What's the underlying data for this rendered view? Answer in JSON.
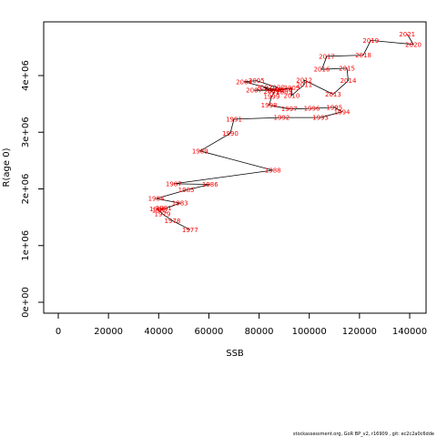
{
  "footer_text": "stockassessment.org, GoR BP_v2, r16909 , git: ec2c2a0c6dde",
  "colors": {
    "line": "#000000",
    "labels": "#ff0000",
    "axis": "#000000"
  },
  "chart_data": {
    "type": "line",
    "title": "",
    "xlabel": "SSB",
    "ylabel": "R(age 0)",
    "xlim": [
      -5000,
      145000
    ],
    "ylim": [
      -100000,
      4800000
    ],
    "x_ticks": [
      0,
      20000,
      40000,
      60000,
      80000,
      100000,
      120000,
      140000
    ],
    "x_tick_labels": [
      "0",
      "20000",
      "40000",
      "60000",
      "80000",
      "100000",
      "120000",
      "140000"
    ],
    "y_ticks": [
      0,
      1000000,
      2000000,
      3000000,
      4000000
    ],
    "y_tick_labels": [
      "0e+00",
      "1e+06",
      "2e+06",
      "3e+06",
      "4e+06"
    ],
    "grid": false,
    "legend": "none",
    "point_labels": "year",
    "points": [
      {
        "year": "1977",
        "x": 52500,
        "y": 1280000
      },
      {
        "year": "1978",
        "x": 45500,
        "y": 1440000
      },
      {
        "year": "1979",
        "x": 41500,
        "y": 1560000
      },
      {
        "year": "1980",
        "x": 39500,
        "y": 1650000
      },
      {
        "year": "1981",
        "x": 42000,
        "y": 1660000
      },
      {
        "year": "1982",
        "x": 40500,
        "y": 1620000
      },
      {
        "year": "1983",
        "x": 48500,
        "y": 1750000
      },
      {
        "year": "1984",
        "x": 39000,
        "y": 1830000
      },
      {
        "year": "1985",
        "x": 51000,
        "y": 1980000
      },
      {
        "year": "1986",
        "x": 60500,
        "y": 2080000
      },
      {
        "year": "1987",
        "x": 46000,
        "y": 2090000
      },
      {
        "year": "1988",
        "x": 85500,
        "y": 2330000
      },
      {
        "year": "1989",
        "x": 56500,
        "y": 2670000
      },
      {
        "year": "1990",
        "x": 68500,
        "y": 2980000
      },
      {
        "year": "1991",
        "x": 70000,
        "y": 3230000
      },
      {
        "year": "1992",
        "x": 89000,
        "y": 3260000
      },
      {
        "year": "1993",
        "x": 104500,
        "y": 3260000
      },
      {
        "year": "1994",
        "x": 113000,
        "y": 3360000
      },
      {
        "year": "1995",
        "x": 110000,
        "y": 3440000
      },
      {
        "year": "1996",
        "x": 101000,
        "y": 3420000
      },
      {
        "year": "1997",
        "x": 92000,
        "y": 3410000
      },
      {
        "year": "1998",
        "x": 84000,
        "y": 3480000
      },
      {
        "year": "1999",
        "x": 85000,
        "y": 3630000
      },
      {
        "year": "2000",
        "x": 87000,
        "y": 3790000
      },
      {
        "year": "2001",
        "x": 85000,
        "y": 3720000
      },
      {
        "year": "2002",
        "x": 82000,
        "y": 3790000
      },
      {
        "year": "2003",
        "x": 90000,
        "y": 3710000
      },
      {
        "year": "2004",
        "x": 74000,
        "y": 3890000
      },
      {
        "year": "2005",
        "x": 79000,
        "y": 3910000
      },
      {
        "year": "2006",
        "x": 90000,
        "y": 3750000
      },
      {
        "year": "2007",
        "x": 78000,
        "y": 3740000
      },
      {
        "year": "2008",
        "x": 86500,
        "y": 3740000
      },
      {
        "year": "2009",
        "x": 93000,
        "y": 3780000
      },
      {
        "year": "2010",
        "x": 93000,
        "y": 3650000
      },
      {
        "year": "2011",
        "x": 98000,
        "y": 3840000
      },
      {
        "year": "2012",
        "x": 98000,
        "y": 3920000
      },
      {
        "year": "2013",
        "x": 109500,
        "y": 3670000
      },
      {
        "year": "2014",
        "x": 115500,
        "y": 3910000
      },
      {
        "year": "2015",
        "x": 115000,
        "y": 4130000
      },
      {
        "year": "2016",
        "x": 105000,
        "y": 4110000
      },
      {
        "year": "2017",
        "x": 107000,
        "y": 4340000
      },
      {
        "year": "2018",
        "x": 121500,
        "y": 4360000
      },
      {
        "year": "2019",
        "x": 124500,
        "y": 4620000
      },
      {
        "year": "2020",
        "x": 141500,
        "y": 4550000
      },
      {
        "year": "2021",
        "x": 139000,
        "y": 4730000
      }
    ]
  }
}
